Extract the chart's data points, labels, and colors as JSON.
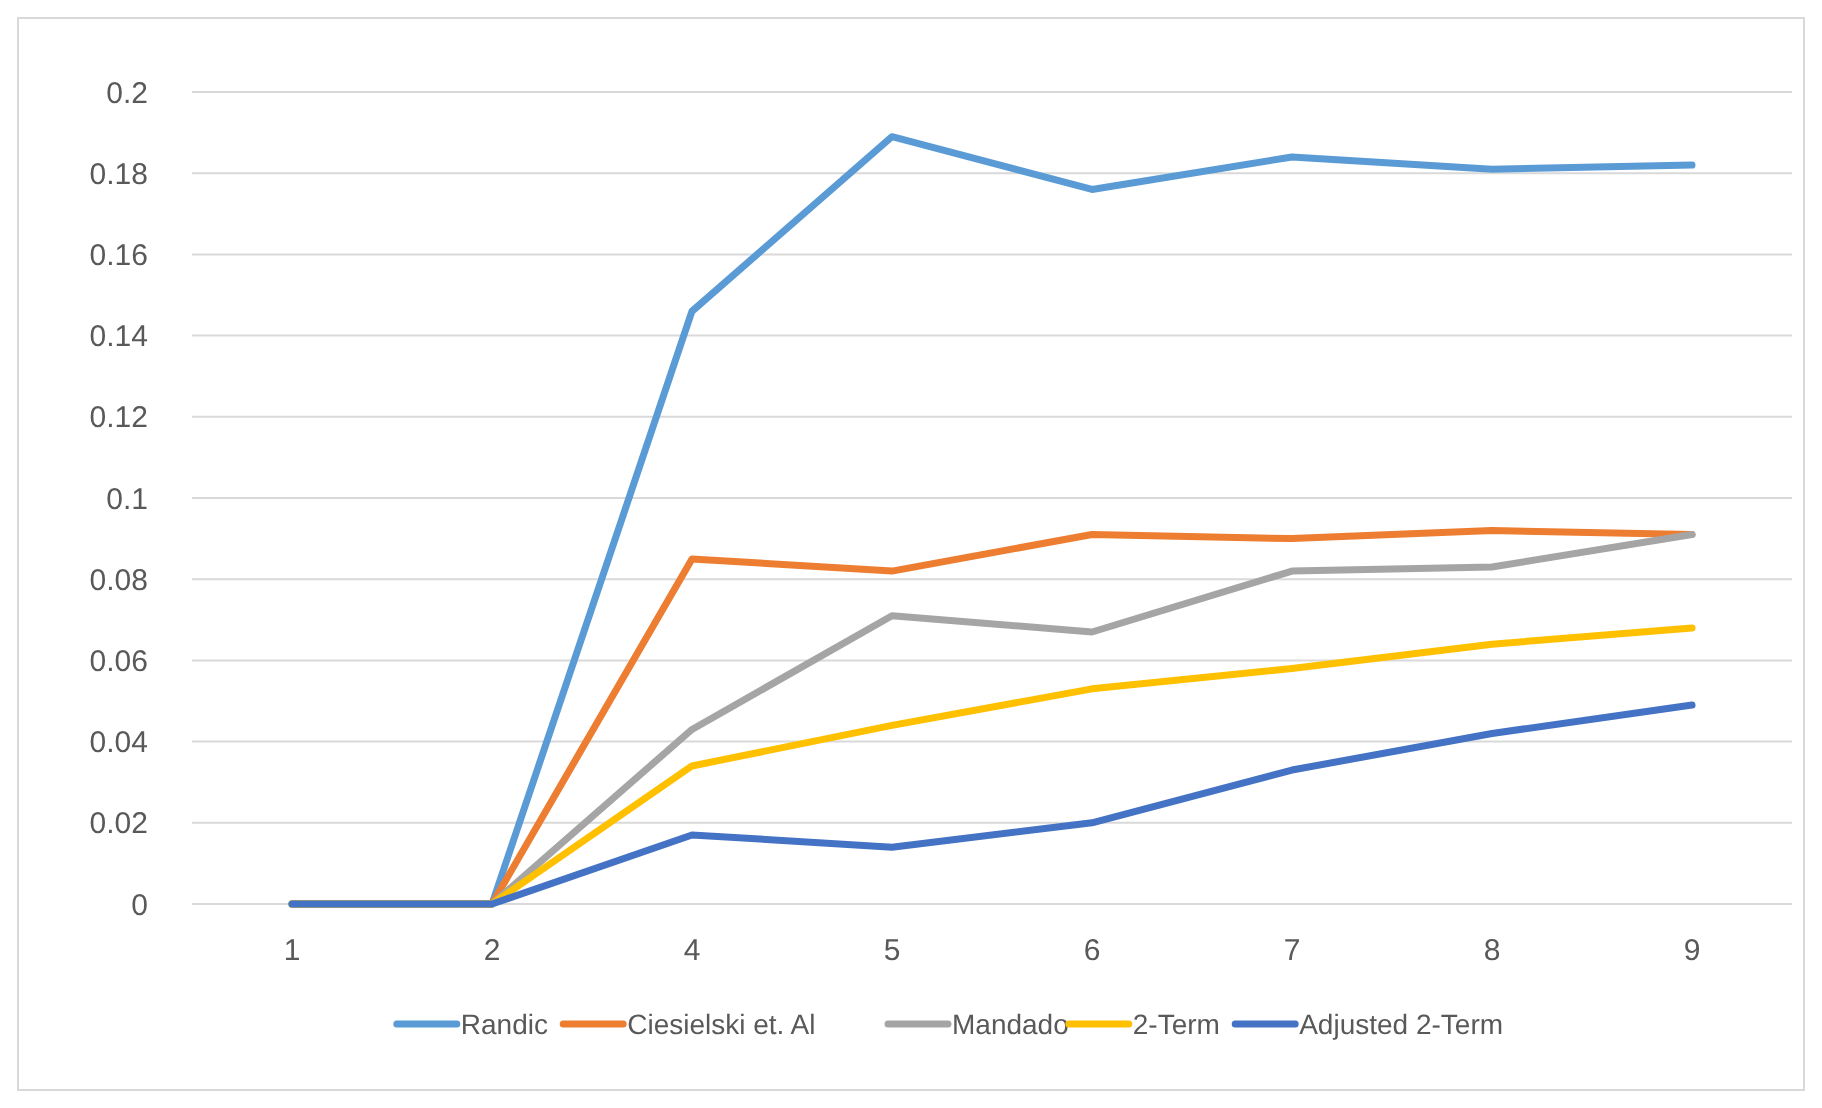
{
  "chart_data": {
    "type": "line",
    "categories": [
      "1",
      "2",
      "4",
      "5",
      "6",
      "7",
      "8",
      "9"
    ],
    "series": [
      {
        "name": "Randic",
        "color": "#5b9bd5",
        "values": [
          0,
          0,
          0.146,
          0.189,
          0.176,
          0.184,
          0.181,
          0.182
        ]
      },
      {
        "name": "Ciesielski et. Al",
        "color": "#ed7d31",
        "values": [
          0,
          0,
          0.085,
          0.082,
          0.091,
          0.09,
          0.092,
          0.091
        ]
      },
      {
        "name": "Mandado",
        "color": "#a5a5a5",
        "values": [
          0,
          0,
          0.043,
          0.071,
          0.067,
          0.082,
          0.083,
          0.091
        ]
      },
      {
        "name": "2-Term",
        "color": "#ffc000",
        "values": [
          0,
          0,
          0.034,
          0.044,
          0.053,
          0.058,
          0.064,
          0.068
        ]
      },
      {
        "name": "Adjusted 2-Term",
        "color": "#4472c4",
        "values": [
          0,
          0,
          0.017,
          0.014,
          0.02,
          0.033,
          0.042,
          0.049
        ]
      }
    ],
    "ylim": [
      0,
      0.2
    ],
    "yticks": [
      0,
      0.02,
      0.04,
      0.06,
      0.08,
      0.1,
      0.12,
      0.14,
      0.16,
      0.18,
      0.2
    ],
    "grid": "y",
    "legend": "bottom",
    "marker": "none",
    "line_style": "solid"
  }
}
